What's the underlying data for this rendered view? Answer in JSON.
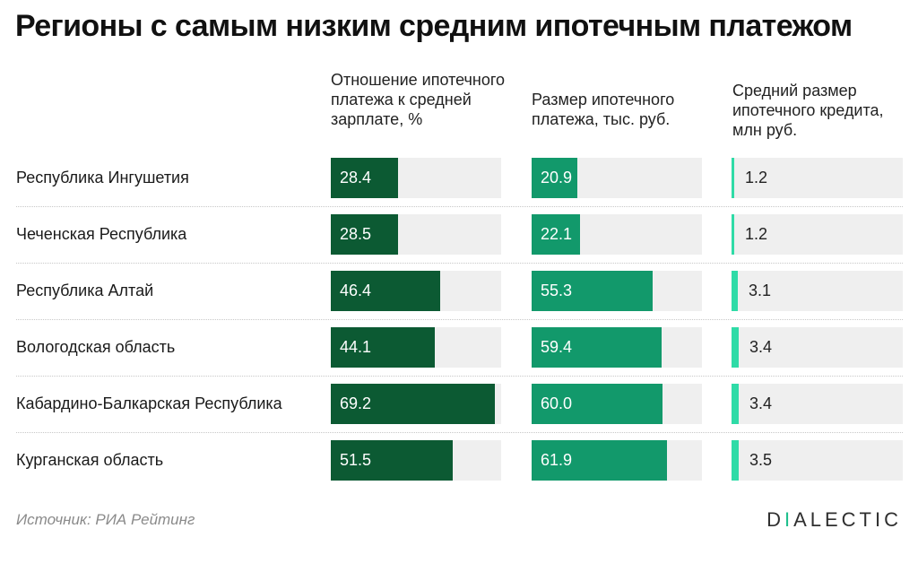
{
  "title": "Регионы с самым низким средним ипотечным платежом",
  "chart_data": {
    "type": "bar",
    "orientation": "horizontal",
    "categories": [
      "Республика Ингушетия",
      "Чеченская Республика",
      "Республика Алтай",
      "Вологодская область",
      "Кабардино-Балкарская Республика",
      "Курганская область"
    ],
    "series": [
      {
        "name": "Отношение ипотечного платежа к средней зарплате, %",
        "values": [
          "28.4",
          "28.5",
          "46.4",
          "44.1",
          "69.2",
          "51.5"
        ],
        "max": 72,
        "color": "#0c5a33"
      },
      {
        "name": "Размер ипотечного платежа, тыс. руб.",
        "values": [
          "20.9",
          "22.1",
          "55.3",
          "59.4",
          "60.0",
          "61.9"
        ],
        "max": 78,
        "color": "#12996b"
      },
      {
        "name": "Средний размер ипотечного кредита, млн руб.",
        "values": [
          "1.2",
          "1.2",
          "3.1",
          "3.4",
          "3.4",
          "3.5"
        ],
        "max": 80,
        "color": "#2fdba7"
      }
    ]
  },
  "source": "Источник: РИА Рейтинг",
  "logo": {
    "prefix": "D",
    "accent": "I",
    "suffix": "ALECTIC"
  }
}
